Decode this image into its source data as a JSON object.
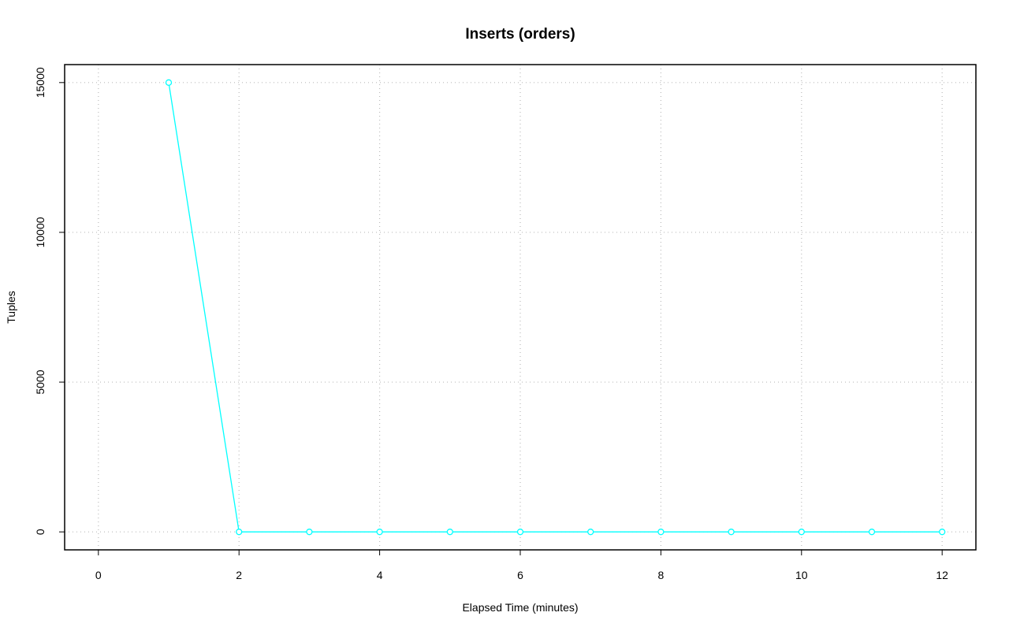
{
  "chart_data": {
    "type": "line",
    "title": "Inserts (orders)",
    "xlabel": "Elapsed Time (minutes)",
    "ylabel": "Tuples",
    "x": [
      1,
      2,
      3,
      4,
      5,
      6,
      7,
      8,
      9,
      10,
      11,
      12
    ],
    "series": [
      {
        "name": "orders",
        "color": "#00ffff",
        "values": [
          15000,
          0,
          0,
          0,
          0,
          0,
          0,
          0,
          0,
          0,
          0,
          0
        ]
      }
    ],
    "xlim": [
      -0.48,
      12.48
    ],
    "xticks": [
      0,
      2,
      4,
      6,
      8,
      10,
      12
    ],
    "ylim": [
      -600,
      15600
    ],
    "yticks": [
      0,
      5000,
      10000,
      15000
    ],
    "grid": true,
    "markers": true
  }
}
